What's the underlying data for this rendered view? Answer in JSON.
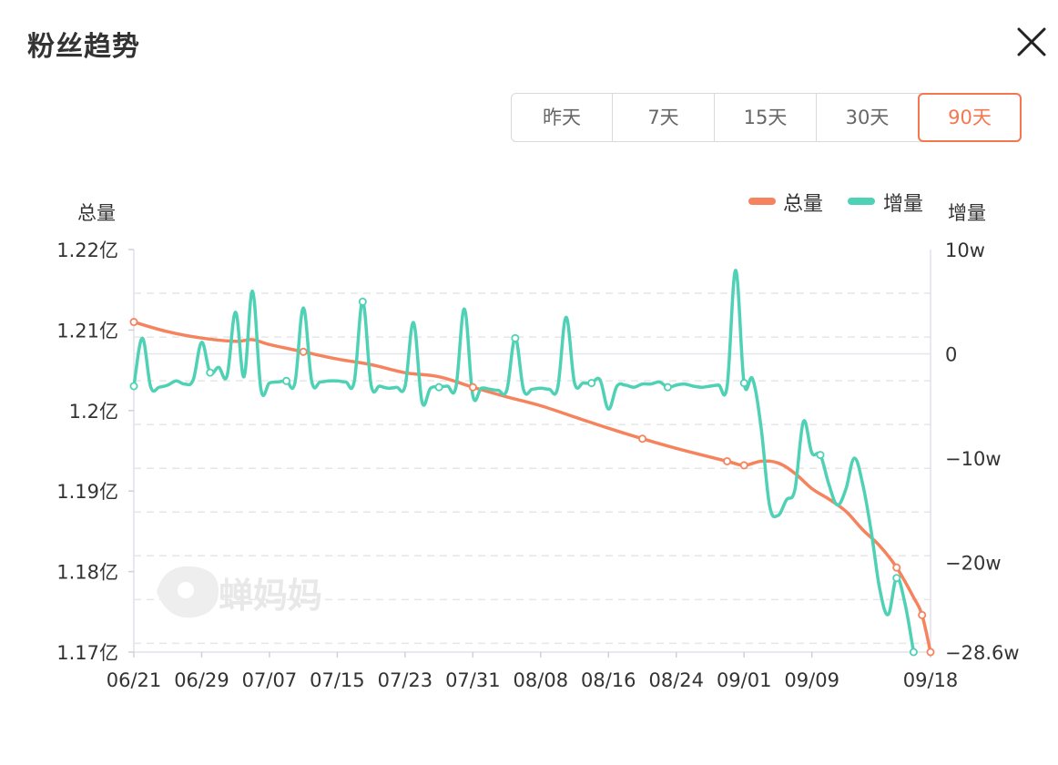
{
  "header": {
    "title": "粉丝趋势",
    "close_icon": "close-icon"
  },
  "range_tabs": [
    {
      "label": "昨天",
      "active": false
    },
    {
      "label": "7天",
      "active": false
    },
    {
      "label": "15天",
      "active": false
    },
    {
      "label": "30天",
      "active": false
    },
    {
      "label": "90天",
      "active": true
    }
  ],
  "colors": {
    "total": "#f5845e",
    "increment": "#4fd1b5",
    "active_tab": "#f5774e",
    "grid": "#e6e6e6",
    "axis_text": "#333333"
  },
  "watermark": {
    "text": "蝉妈妈",
    "icon": "chanmama-logo-icon"
  },
  "chart_data": {
    "type": "line",
    "left_axis_title": "总量",
    "right_axis_title": "增量",
    "legend": {
      "placement": "top-right",
      "items": [
        {
          "name": "总量",
          "color": "#f5845e"
        },
        {
          "name": "增量",
          "color": "#4fd1b5"
        }
      ]
    },
    "left_axis": {
      "ylim": [
        1.17,
        1.22
      ],
      "ticks": [
        {
          "value": 1.22,
          "label": "1.22亿"
        },
        {
          "value": 1.21,
          "label": "1.21亿"
        },
        {
          "value": 1.2,
          "label": "1.2亿"
        },
        {
          "value": 1.19,
          "label": "1.19亿"
        },
        {
          "value": 1.18,
          "label": "1.18亿"
        },
        {
          "value": 1.17,
          "label": "1.17亿"
        }
      ]
    },
    "right_axis": {
      "ylim": [
        -28.6,
        10
      ],
      "ticks": [
        {
          "value": 10,
          "label": "10w"
        },
        {
          "value": 0,
          "label": "0"
        },
        {
          "value": -10,
          "label": "−10w"
        },
        {
          "value": -20,
          "label": "−20w"
        },
        {
          "value": -28.6,
          "label": "−28.6w"
        }
      ]
    },
    "x_tick_labels": [
      "06/21",
      "06/29",
      "07/07",
      "07/15",
      "07/23",
      "07/31",
      "08/08",
      "08/16",
      "08/24",
      "09/01",
      "09/09",
      "09/18"
    ],
    "grid": true,
    "series": [
      {
        "name": "总量",
        "axis": "left",
        "unit": "亿",
        "points": [
          [
            0,
            1.211
          ],
          [
            4,
            1.2098
          ],
          [
            8,
            1.209
          ],
          [
            12,
            1.2086
          ],
          [
            14,
            1.2088
          ],
          [
            16,
            1.2082
          ],
          [
            20,
            1.2073
          ],
          [
            24,
            1.2064
          ],
          [
            28,
            1.2057
          ],
          [
            32,
            1.2047
          ],
          [
            36,
            1.2042
          ],
          [
            40,
            1.2029
          ],
          [
            44,
            1.2017
          ],
          [
            48,
            1.2006
          ],
          [
            52,
            1.1992
          ],
          [
            56,
            1.1978
          ],
          [
            60,
            1.1965
          ],
          [
            64,
            1.1953
          ],
          [
            70,
            1.1937
          ],
          [
            72,
            1.1932
          ],
          [
            74,
            1.1937
          ],
          [
            76,
            1.1935
          ],
          [
            78,
            1.1922
          ],
          [
            80,
            1.1903
          ],
          [
            82,
            1.189
          ],
          [
            84,
            1.1875
          ],
          [
            86,
            1.1852
          ],
          [
            88,
            1.1832
          ],
          [
            90,
            1.1805
          ],
          [
            92,
            1.1768
          ],
          [
            93,
            1.1746
          ],
          [
            94,
            1.17
          ]
        ]
      },
      {
        "name": "增量",
        "axis": "right",
        "unit": "w",
        "points": [
          [
            0,
            -3.1
          ],
          [
            1,
            1.5
          ],
          [
            2,
            -3.2
          ],
          [
            3,
            -3.2
          ],
          [
            4,
            -3.0
          ],
          [
            5,
            -2.6
          ],
          [
            6,
            -2.9
          ],
          [
            7,
            -2.5
          ],
          [
            8,
            1.1
          ],
          [
            9,
            -1.8
          ],
          [
            10,
            -1.3
          ],
          [
            11,
            -2.1
          ],
          [
            12,
            4.0
          ],
          [
            13,
            -2.2
          ],
          [
            14,
            6.0
          ],
          [
            15,
            -3.4
          ],
          [
            16,
            -2.8
          ],
          [
            17,
            -2.7
          ],
          [
            18,
            -2.6
          ],
          [
            19,
            -2.8
          ],
          [
            20,
            4.4
          ],
          [
            21,
            -2.7
          ],
          [
            22,
            -2.7
          ],
          [
            23,
            -2.6
          ],
          [
            24,
            -2.6
          ],
          [
            25,
            -2.7
          ],
          [
            26,
            -2.7
          ],
          [
            27,
            5.0
          ],
          [
            28,
            -3.0
          ],
          [
            29,
            -3.1
          ],
          [
            30,
            -3.3
          ],
          [
            31,
            -3.2
          ],
          [
            32,
            -3.1
          ],
          [
            33,
            3.0
          ],
          [
            34,
            -4.6
          ],
          [
            35,
            -3.3
          ],
          [
            36,
            -3.2
          ],
          [
            37,
            -3.1
          ],
          [
            38,
            -3.2
          ],
          [
            39,
            4.3
          ],
          [
            40,
            -4.0
          ],
          [
            41,
            -3.3
          ],
          [
            42,
            -3.4
          ],
          [
            43,
            -3.5
          ],
          [
            44,
            -3.5
          ],
          [
            45,
            1.5
          ],
          [
            46,
            -3.5
          ],
          [
            47,
            -3.4
          ],
          [
            48,
            -3.3
          ],
          [
            49,
            -3.4
          ],
          [
            50,
            -3.3
          ],
          [
            51,
            3.5
          ],
          [
            52,
            -2.8
          ],
          [
            53,
            -2.8
          ],
          [
            54,
            -2.8
          ],
          [
            55,
            -2.5
          ],
          [
            56,
            -5.3
          ],
          [
            57,
            -3.1
          ],
          [
            58,
            -3.0
          ],
          [
            59,
            -3.2
          ],
          [
            60,
            -2.9
          ],
          [
            61,
            -2.9
          ],
          [
            62,
            -2.7
          ],
          [
            63,
            -3.2
          ],
          [
            64,
            -3.0
          ],
          [
            65,
            -2.9
          ],
          [
            66,
            -3.1
          ],
          [
            67,
            -3.2
          ],
          [
            68,
            -3.1
          ],
          [
            69,
            -3.0
          ],
          [
            70,
            -3.1
          ],
          [
            71,
            8.0
          ],
          [
            72,
            -2.8
          ],
          [
            73,
            -2.4
          ],
          [
            74,
            -7.0
          ],
          [
            75,
            -14.5
          ],
          [
            76,
            -15.5
          ],
          [
            77,
            -14.0
          ],
          [
            78,
            -13.0
          ],
          [
            79,
            -6.5
          ],
          [
            80,
            -9.5
          ],
          [
            81,
            -9.7
          ],
          [
            82,
            -12.5
          ],
          [
            83,
            -14.5
          ],
          [
            84,
            -13.0
          ],
          [
            85,
            -10.0
          ],
          [
            86,
            -12.5
          ],
          [
            87,
            -17.0
          ],
          [
            88,
            -22.5
          ],
          [
            89,
            -25.0
          ],
          [
            90,
            -21.5
          ],
          [
            91,
            -24.0
          ],
          [
            92,
            -28.6
          ]
        ]
      }
    ]
  }
}
